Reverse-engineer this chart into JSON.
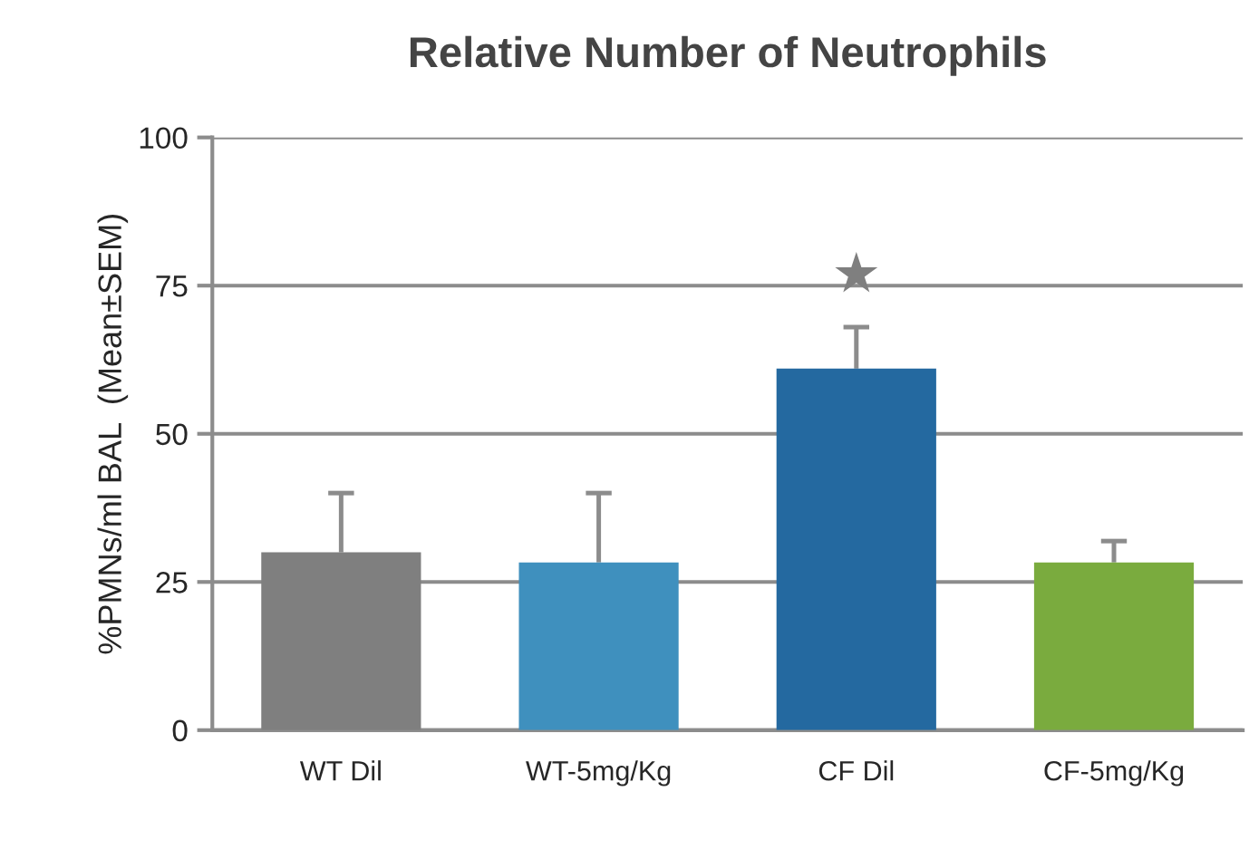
{
  "chart_data": {
    "type": "bar",
    "title": "Relative Number of Neutrophils",
    "ylabel": "%PMNs/ml BAL  (Mean±SEM)",
    "categories": [
      "WT Dil",
      "WT-5mg/Kg",
      "CF Dil",
      "CF-5mg/Kg"
    ],
    "values": [
      30,
      28.3,
      61,
      28.3
    ],
    "colors": [
      "#7f7f7f",
      "#3f90be",
      "#2469a0",
      "#7aab3e"
    ],
    "errors": [
      [
        30,
        40
      ],
      [
        28.3,
        40
      ],
      [
        61,
        68
      ],
      [
        28.3,
        31.9
      ]
    ],
    "annotations": [
      "★"
    ],
    "ylim": [
      0,
      100
    ],
    "yticks": [
      0,
      25,
      50,
      75,
      100
    ],
    "grid": "y"
  }
}
